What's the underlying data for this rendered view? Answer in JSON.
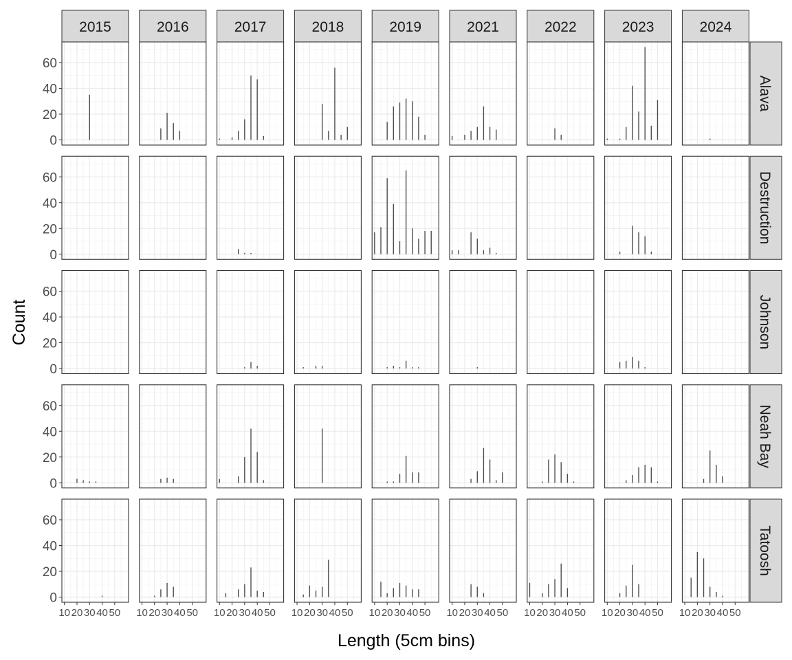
{
  "chart_data": {
    "type": "bar",
    "xlabel": "Length (5cm bins)",
    "ylabel": "Count",
    "years": [
      "2015",
      "2016",
      "2017",
      "2018",
      "2019",
      "2021",
      "2022",
      "2023",
      "2024"
    ],
    "sites": [
      "Alava",
      "Destruction",
      "Johnson",
      "Neah Bay",
      "Tatoosh"
    ],
    "x_ticks": [
      10,
      20,
      30,
      40,
      50
    ],
    "y_ticks": [
      0,
      20,
      40,
      60
    ],
    "xlim": [
      8,
      61
    ],
    "ylim": [
      -4,
      76
    ],
    "panels": {
      "Alava": {
        "2015": [
          [
            30,
            35
          ]
        ],
        "2016": [
          [
            25,
            9
          ],
          [
            30,
            21
          ],
          [
            35,
            13
          ],
          [
            40,
            7
          ]
        ],
        "2017": [
          [
            10,
            1
          ],
          [
            20,
            2
          ],
          [
            25,
            7
          ],
          [
            30,
            16
          ],
          [
            35,
            50
          ],
          [
            40,
            47
          ],
          [
            45,
            3
          ]
        ],
        "2018": [
          [
            30,
            28
          ],
          [
            35,
            7
          ],
          [
            40,
            56
          ],
          [
            45,
            4
          ],
          [
            50,
            10
          ]
        ],
        "2019": [
          [
            20,
            14
          ],
          [
            25,
            26
          ],
          [
            30,
            29
          ],
          [
            35,
            32
          ],
          [
            40,
            30
          ],
          [
            45,
            18
          ],
          [
            50,
            4
          ]
        ],
        "2021": [
          [
            10,
            3
          ],
          [
            20,
            4
          ],
          [
            25,
            7
          ],
          [
            30,
            10
          ],
          [
            35,
            26
          ],
          [
            40,
            10
          ],
          [
            45,
            8
          ]
        ],
        "2022": [
          [
            30,
            9
          ],
          [
            35,
            4
          ]
        ],
        "2023": [
          [
            10,
            1
          ],
          [
            20,
            1
          ],
          [
            25,
            10
          ],
          [
            30,
            42
          ],
          [
            35,
            22
          ],
          [
            40,
            72
          ],
          [
            45,
            11
          ],
          [
            50,
            31
          ]
        ],
        "2024": [
          [
            30,
            1
          ]
        ]
      },
      "Destruction": {
        "2015": [],
        "2016": [],
        "2017": [
          [
            25,
            4
          ],
          [
            30,
            1
          ],
          [
            35,
            1
          ]
        ],
        "2018": [],
        "2019": [
          [
            10,
            17
          ],
          [
            15,
            21
          ],
          [
            20,
            59
          ],
          [
            25,
            39
          ],
          [
            30,
            10
          ],
          [
            35,
            65
          ],
          [
            40,
            20
          ],
          [
            45,
            12
          ],
          [
            50,
            18
          ],
          [
            55,
            18
          ]
        ],
        "2021": [
          [
            10,
            3
          ],
          [
            15,
            3
          ],
          [
            25,
            17
          ],
          [
            30,
            12
          ],
          [
            35,
            3
          ],
          [
            40,
            5
          ],
          [
            45,
            1
          ]
        ],
        "2022": [],
        "2023": [
          [
            20,
            2
          ],
          [
            30,
            22
          ],
          [
            35,
            17
          ],
          [
            40,
            14
          ],
          [
            45,
            2
          ]
        ],
        "2024": []
      },
      "Johnson": {
        "2015": [],
        "2016": [],
        "2017": [
          [
            30,
            1
          ],
          [
            35,
            5
          ],
          [
            40,
            2
          ]
        ],
        "2018": [
          [
            15,
            1
          ],
          [
            25,
            2
          ],
          [
            30,
            2
          ]
        ],
        "2019": [
          [
            20,
            1
          ],
          [
            25,
            2
          ],
          [
            30,
            1
          ],
          [
            35,
            6
          ],
          [
            40,
            1
          ],
          [
            45,
            1
          ]
        ],
        "2021": [
          [
            30,
            1
          ]
        ],
        "2022": [],
        "2023": [
          [
            20,
            5
          ],
          [
            25,
            6
          ],
          [
            30,
            9
          ],
          [
            35,
            6
          ],
          [
            40,
            1
          ]
        ],
        "2024": []
      },
      "Neah Bay": {
        "2015": [
          [
            20,
            3
          ],
          [
            25,
            2
          ],
          [
            30,
            1
          ],
          [
            35,
            1
          ]
        ],
        "2016": [
          [
            25,
            3
          ],
          [
            30,
            4
          ],
          [
            35,
            3
          ]
        ],
        "2017": [
          [
            10,
            3
          ],
          [
            25,
            5
          ],
          [
            30,
            20
          ],
          [
            35,
            42
          ],
          [
            40,
            24
          ],
          [
            45,
            2
          ]
        ],
        "2018": [
          [
            30,
            42
          ]
        ],
        "2019": [
          [
            20,
            1
          ],
          [
            25,
            1
          ],
          [
            30,
            7
          ],
          [
            35,
            21
          ],
          [
            40,
            8
          ],
          [
            45,
            8
          ]
        ],
        "2021": [
          [
            25,
            3
          ],
          [
            30,
            9
          ],
          [
            35,
            27
          ],
          [
            40,
            18
          ],
          [
            45,
            2
          ],
          [
            50,
            8
          ]
        ],
        "2022": [
          [
            20,
            1
          ],
          [
            25,
            18
          ],
          [
            30,
            22
          ],
          [
            35,
            16
          ],
          [
            40,
            7
          ],
          [
            45,
            1
          ]
        ],
        "2023": [
          [
            25,
            2
          ],
          [
            30,
            6
          ],
          [
            35,
            12
          ],
          [
            40,
            14
          ],
          [
            45,
            12
          ],
          [
            50,
            1
          ]
        ],
        "2024": [
          [
            25,
            3
          ],
          [
            30,
            25
          ],
          [
            35,
            14
          ],
          [
            40,
            5
          ]
        ]
      },
      "Tatoosh": {
        "2015": [
          [
            40,
            1
          ]
        ],
        "2016": [
          [
            20,
            1
          ],
          [
            25,
            6
          ],
          [
            30,
            11
          ],
          [
            35,
            8
          ]
        ],
        "2017": [
          [
            15,
            3
          ],
          [
            25,
            6
          ],
          [
            30,
            10
          ],
          [
            35,
            23
          ],
          [
            40,
            5
          ],
          [
            45,
            4
          ]
        ],
        "2018": [
          [
            15,
            2
          ],
          [
            20,
            9
          ],
          [
            25,
            5
          ],
          [
            30,
            8
          ],
          [
            35,
            29
          ]
        ],
        "2019": [
          [
            15,
            12
          ],
          [
            20,
            3
          ],
          [
            25,
            7
          ],
          [
            30,
            11
          ],
          [
            35,
            9
          ],
          [
            40,
            6
          ],
          [
            45,
            6
          ]
        ],
        "2021": [
          [
            25,
            10
          ],
          [
            30,
            8
          ],
          [
            35,
            3
          ]
        ],
        "2022": [
          [
            10,
            11
          ],
          [
            20,
            3
          ],
          [
            25,
            10
          ],
          [
            30,
            14
          ],
          [
            35,
            26
          ],
          [
            40,
            7
          ]
        ],
        "2023": [
          [
            20,
            3
          ],
          [
            25,
            9
          ],
          [
            30,
            25
          ],
          [
            35,
            10
          ]
        ],
        "2024": [
          [
            15,
            15
          ],
          [
            20,
            35
          ],
          [
            25,
            30
          ],
          [
            30,
            8
          ],
          [
            35,
            4
          ],
          [
            40,
            1
          ]
        ]
      }
    }
  }
}
